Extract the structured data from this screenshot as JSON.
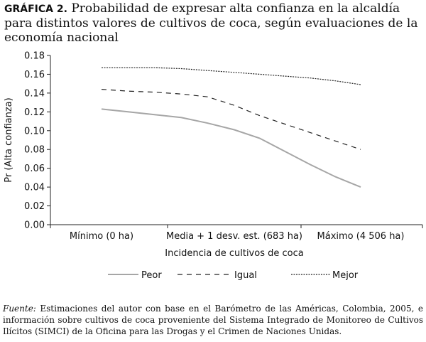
{
  "figure": {
    "label": "GRÁFICA 2.",
    "title": "Probabilidad de expresar alta confianza en la alcaldía para distintos valores de cultivos de coca, según evaluaciones de la economía nacional"
  },
  "chart_data": {
    "type": "line",
    "categories": [
      "Mínimo (0 ha)",
      "Media + 1 desv. est. (683 ha)",
      "Máximo (4 506 ha)"
    ],
    "xlabel": "Incidencia de cultivos de coca",
    "ylabel": "Pr (Alta confianza)",
    "ylim": [
      0,
      0.18
    ],
    "yticks": [
      "0.00",
      "0.02",
      "0.04",
      "0.06",
      "0.08",
      "0.10",
      "0.12",
      "0.14",
      "0.16",
      "0.18"
    ],
    "grid": false,
    "legend_position": "bottom",
    "series": [
      {
        "name": "Peor",
        "color": "#a6a6a6",
        "dash": "solid",
        "values": [
          0.123,
          0.104,
          0.04
        ],
        "path_x": [
          0,
          0.2,
          0.4,
          0.6,
          0.8,
          1.0,
          1.2,
          1.4,
          1.6,
          1.8,
          2.0
        ],
        "path_y": [
          0.123,
          0.12,
          0.117,
          0.114,
          0.108,
          0.101,
          0.092,
          0.078,
          0.064,
          0.051,
          0.04
        ]
      },
      {
        "name": "Igual",
        "color": "#222222",
        "dash": "dashed",
        "values": [
          0.144,
          0.132,
          0.08
        ],
        "path_x": [
          0,
          0.2,
          0.4,
          0.6,
          0.8,
          1.0,
          1.2,
          1.4,
          1.6,
          1.8,
          2.0
        ],
        "path_y": [
          0.144,
          0.142,
          0.141,
          0.139,
          0.136,
          0.127,
          0.116,
          0.107,
          0.098,
          0.089,
          0.08
        ]
      },
      {
        "name": "Mejor",
        "color": "#222222",
        "dash": "dotted",
        "values": [
          0.167,
          0.162,
          0.149
        ],
        "path_x": [
          0,
          0.2,
          0.4,
          0.6,
          0.8,
          1.0,
          1.2,
          1.4,
          1.6,
          1.8,
          2.0
        ],
        "path_y": [
          0.167,
          0.167,
          0.167,
          0.166,
          0.164,
          0.162,
          0.16,
          0.158,
          0.156,
          0.153,
          0.149
        ]
      }
    ]
  },
  "source": {
    "label": "Fuente:",
    "text": "Estimaciones del autor con base en el Barómetro de las Américas, Colombia, 2005, e información sobre cultivos de coca proveniente del Sistema Integrado de Monitoreo de Cultivos Ilícitos (SIMCI) de la Oficina para las Drogas y el Crimen de Naciones Unidas."
  }
}
